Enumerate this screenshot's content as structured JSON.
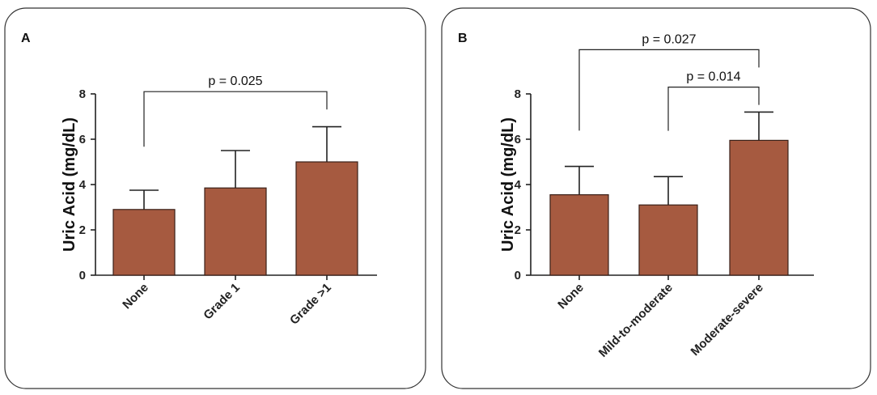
{
  "chart_data": [
    {
      "type": "bar",
      "panel_label": "A",
      "ylabel": "Uric Acid (mg/dL)",
      "ylim": [
        0,
        8
      ],
      "yticks": [
        "0",
        "2",
        "4",
        "6",
        "8"
      ],
      "categories": [
        "None",
        "Grade 1",
        "Grade >1"
      ],
      "values": [
        2.9,
        3.85,
        5.0
      ],
      "error_upper": [
        3.75,
        5.5,
        6.55
      ],
      "bar_color": "#a65a40",
      "significance": [
        {
          "label": "p = 0.025",
          "from": 0,
          "to": 2,
          "bracket_y": 8.1
        }
      ]
    },
    {
      "type": "bar",
      "panel_label": "B",
      "ylabel": "Uric Acid (mg/dL)",
      "ylim": [
        0,
        8
      ],
      "yticks": [
        "0",
        "2",
        "4",
        "6",
        "8"
      ],
      "categories": [
        "None",
        "Mild-to-moderate",
        "Moderate-severe"
      ],
      "values": [
        3.55,
        3.1,
        5.95
      ],
      "error_upper": [
        4.8,
        4.35,
        7.2
      ],
      "bar_color": "#a65a40",
      "significance": [
        {
          "label": "p = 0.027",
          "from": 0,
          "to": 2,
          "bracket_y": 9.95
        },
        {
          "label": "p = 0.014",
          "from": 1,
          "to": 2,
          "bracket_y": 8.3
        }
      ]
    }
  ]
}
